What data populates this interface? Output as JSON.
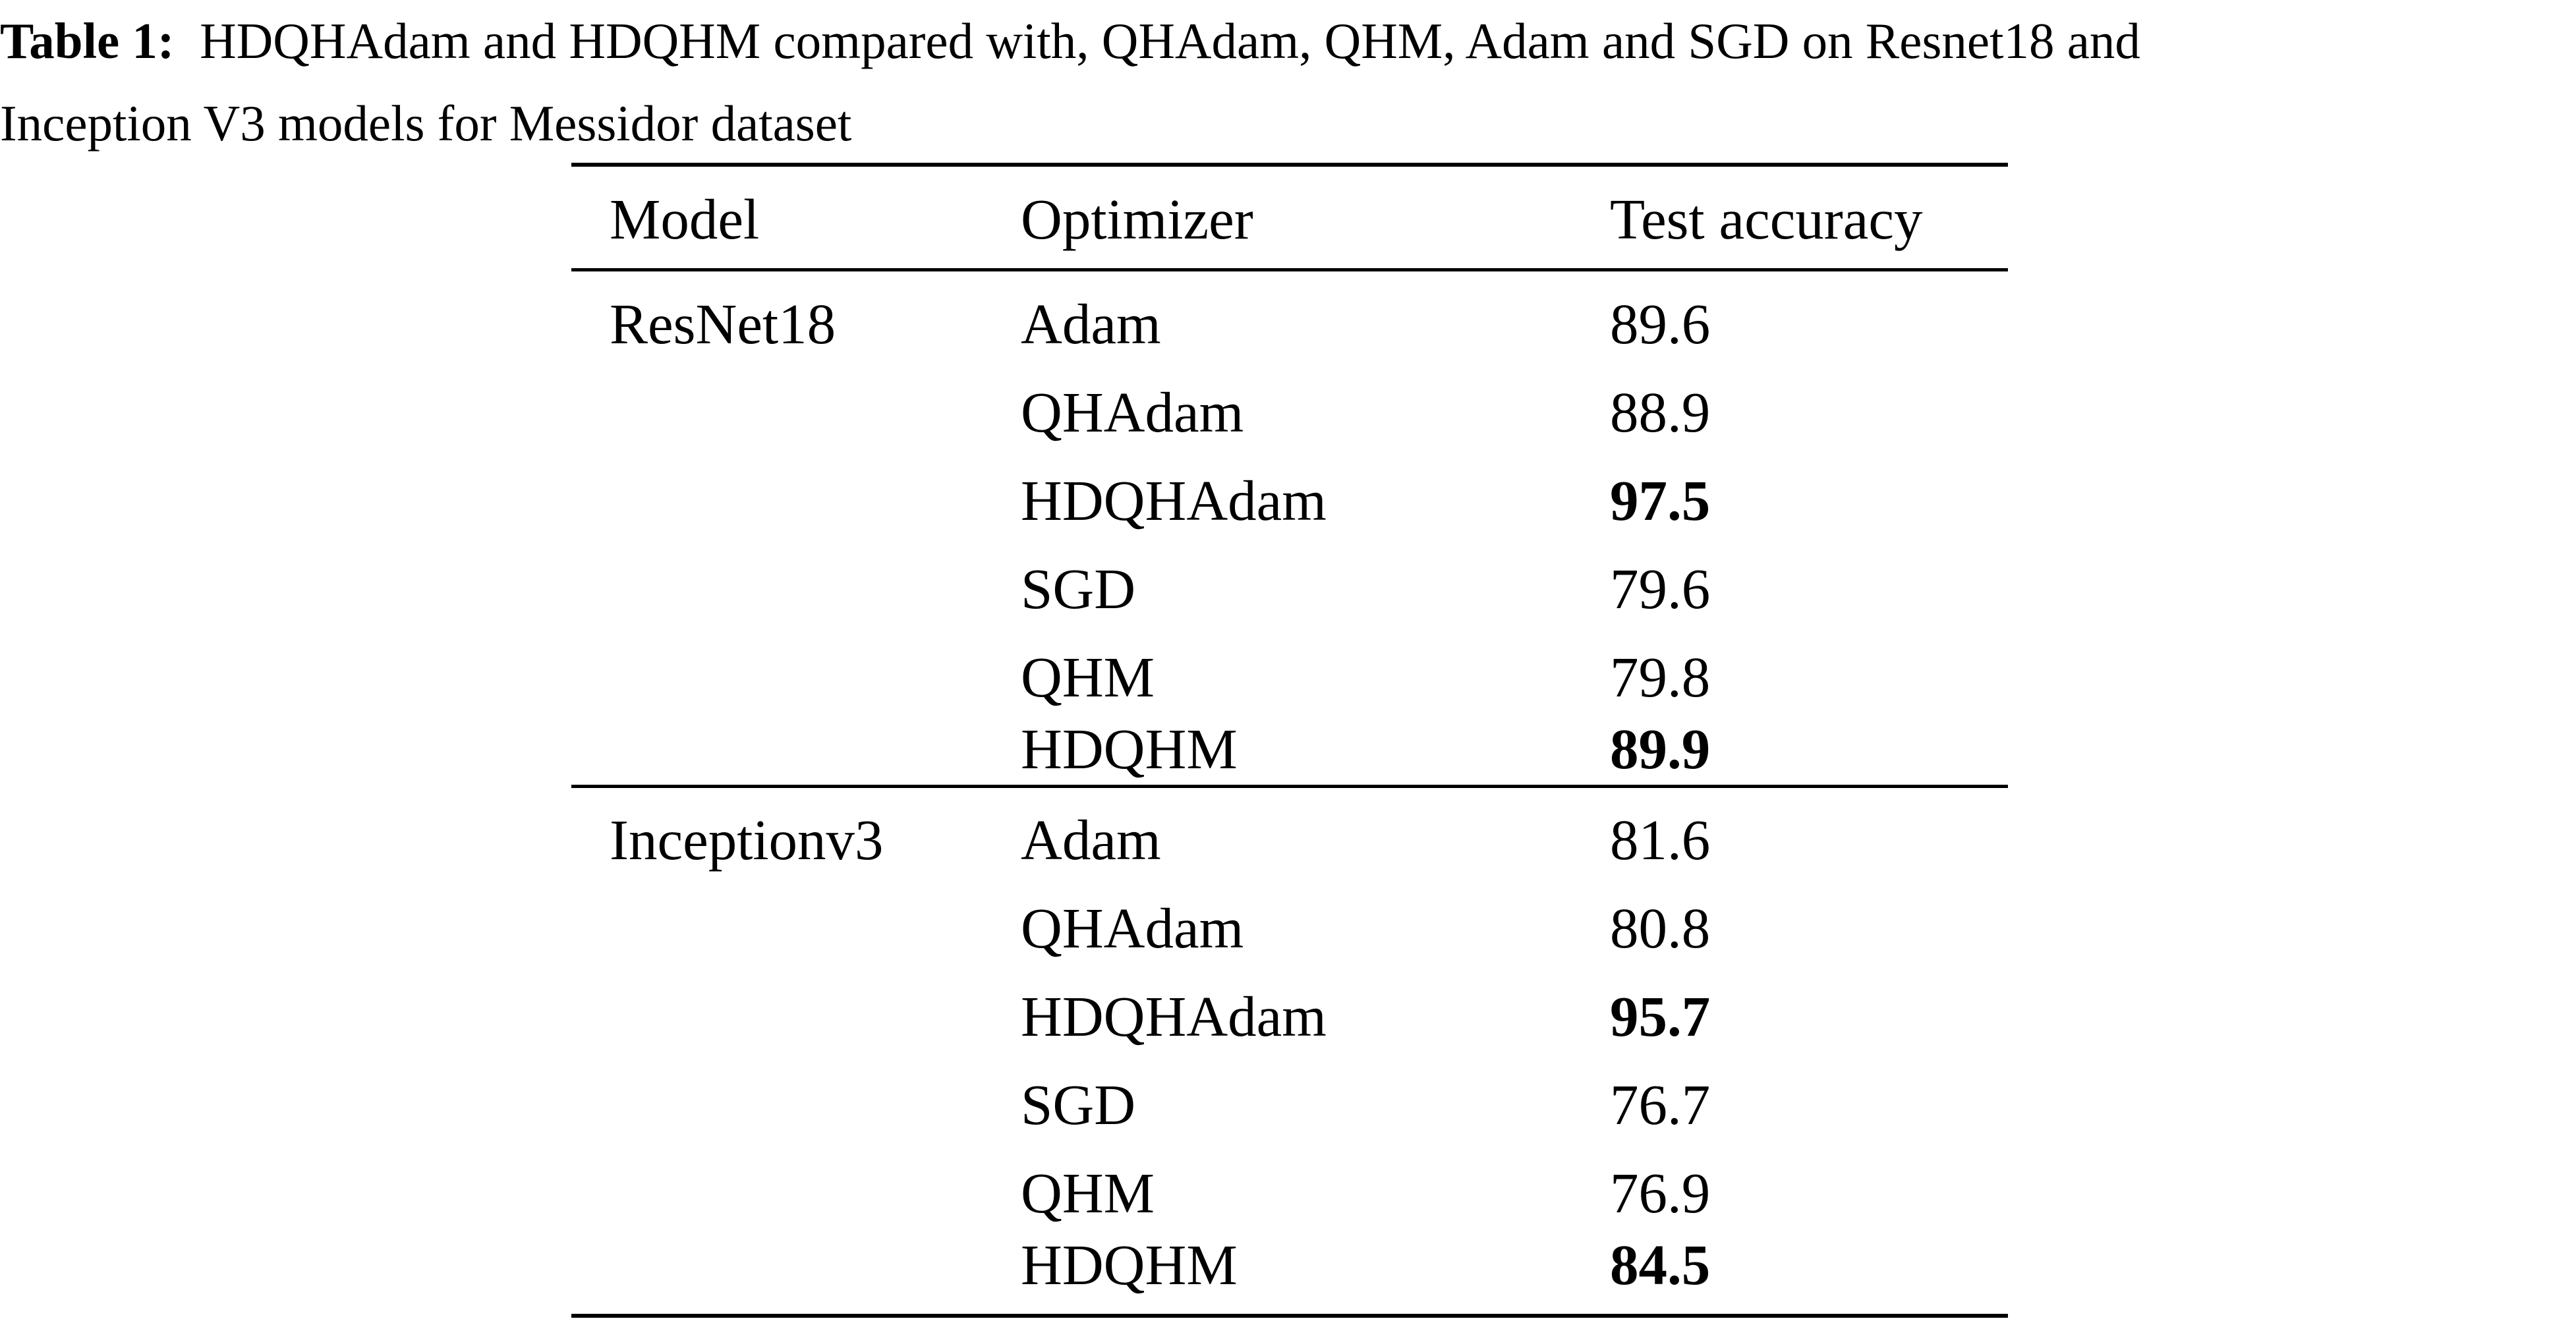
{
  "caption": {
    "label": "Table 1:",
    "line1": "HDQHAdam and HDQHM compared with, QHAdam, QHM, Adam and SGD on Resnet18 and",
    "line2": "Inception V3 models for Messidor dataset"
  },
  "table": {
    "headers": {
      "model": "Model",
      "optimizer": "Optimizer",
      "accuracy": "Test accuracy"
    },
    "groups": [
      {
        "model": "ResNet18",
        "rows": [
          {
            "optimizer": "Adam",
            "accuracy": "89.6",
            "best": false
          },
          {
            "optimizer": "QHAdam",
            "accuracy": "88.9",
            "best": false
          },
          {
            "optimizer": "HDQHAdam",
            "accuracy": "97.5",
            "best": true
          },
          {
            "optimizer": "SGD",
            "accuracy": "79.6",
            "best": false
          },
          {
            "optimizer": "QHM",
            "accuracy": "79.8",
            "best": false
          },
          {
            "optimizer": "HDQHM",
            "accuracy": "89.9",
            "best": true
          }
        ]
      },
      {
        "model": "Inceptionv3",
        "rows": [
          {
            "optimizer": "Adam",
            "accuracy": "81.6",
            "best": false
          },
          {
            "optimizer": "QHAdam",
            "accuracy": "80.8",
            "best": false
          },
          {
            "optimizer": "HDQHAdam",
            "accuracy": "95.7",
            "best": true
          },
          {
            "optimizer": "SGD",
            "accuracy": "76.7",
            "best": false
          },
          {
            "optimizer": "QHM",
            "accuracy": "76.9",
            "best": false
          },
          {
            "optimizer": "HDQHM",
            "accuracy": "84.5",
            "best": true
          }
        ]
      }
    ]
  }
}
